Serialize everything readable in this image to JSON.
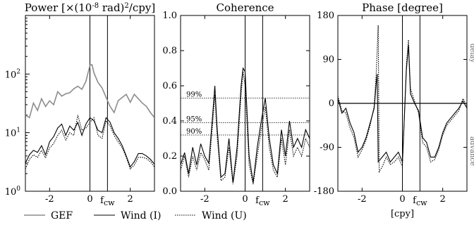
{
  "chart_data": [
    {
      "type": "line",
      "title": "Power [×(10",
      "title_exp": "-8",
      "title_tail": " rad)",
      "title_exp2": "2",
      "title_end": "/cpy]",
      "yscale": "log",
      "ylim": [
        1,
        1000
      ],
      "xlim": [
        -3.2,
        3.2
      ],
      "xticks": [
        -2,
        0,
        2
      ],
      "xtick_labels": [
        "-2",
        "0",
        "2"
      ],
      "ytick_exponents": [
        "0",
        "1",
        "2"
      ],
      "ytick_base": "10",
      "vlines": [
        0,
        0.87
      ],
      "vline_label_base": "f",
      "vline_label_sub": "cw",
      "series": [
        {
          "name": "GEF",
          "color": "#8c8c8c",
          "x": [
            -3.2,
            -3.0,
            -2.8,
            -2.6,
            -2.4,
            -2.2,
            -2.0,
            -1.8,
            -1.6,
            -1.4,
            -1.2,
            -1.0,
            -0.8,
            -0.6,
            -0.4,
            -0.2,
            0.0,
            0.1,
            0.2,
            0.4,
            0.6,
            0.8,
            1.0,
            1.2,
            1.4,
            1.6,
            1.8,
            2.0,
            2.2,
            2.4,
            2.6,
            2.8,
            3.0,
            3.2
          ],
          "y": [
            20,
            18,
            32,
            24,
            38,
            28,
            35,
            30,
            50,
            42,
            46,
            48,
            56,
            62,
            55,
            75,
            140,
            145,
            105,
            72,
            58,
            40,
            28,
            22,
            35,
            40,
            45,
            33,
            45,
            38,
            32,
            28,
            22,
            18
          ]
        },
        {
          "name": "Wind (I)",
          "color": "#000000",
          "x": [
            -3.2,
            -3.0,
            -2.8,
            -2.6,
            -2.4,
            -2.2,
            -2.0,
            -1.8,
            -1.6,
            -1.4,
            -1.2,
            -1.0,
            -0.8,
            -0.6,
            -0.4,
            -0.2,
            0.0,
            0.2,
            0.4,
            0.6,
            0.8,
            1.0,
            1.2,
            1.4,
            1.6,
            1.8,
            2.0,
            2.2,
            2.4,
            2.6,
            2.8,
            3.0,
            3.2
          ],
          "y": [
            3.0,
            4.2,
            5.0,
            4.6,
            6.0,
            4.2,
            7.0,
            8.5,
            12,
            14,
            9,
            13,
            11,
            15,
            9,
            14,
            18,
            16,
            11,
            10,
            18,
            15,
            10,
            8,
            6,
            4,
            2.6,
            3.2,
            4.4,
            4.4,
            4.0,
            3.5,
            2.9
          ]
        },
        {
          "name": "Wind (U)",
          "color": "#000000",
          "dashed": true,
          "x": [
            -3.2,
            -3.0,
            -2.8,
            -2.6,
            -2.4,
            -2.2,
            -2.0,
            -1.8,
            -1.6,
            -1.4,
            -1.2,
            -1.0,
            -0.8,
            -0.6,
            -0.4,
            -0.2,
            0.0,
            0.2,
            0.4,
            0.6,
            0.8,
            1.0,
            1.2,
            1.4,
            1.6,
            1.8,
            2.0,
            2.2,
            2.4,
            2.6,
            2.8,
            3.0,
            3.2
          ],
          "y": [
            2.4,
            3.5,
            4.2,
            3.8,
            5.0,
            3.7,
            5.5,
            6.5,
            9,
            11,
            7.5,
            10,
            9,
            20,
            11,
            12,
            15,
            18,
            9,
            8,
            16,
            13,
            9,
            7,
            5.5,
            3.8,
            2.4,
            2.8,
            3.8,
            3.8,
            3.6,
            3.2,
            2.6
          ]
        }
      ]
    },
    {
      "type": "line",
      "title": "Coherence",
      "ylim": [
        0,
        1.0
      ],
      "xlim": [
        -3.2,
        3.2
      ],
      "xticks": [
        -2,
        0,
        2
      ],
      "xtick_labels": [
        "-2",
        "0",
        "2"
      ],
      "yticks": [
        0.0,
        0.2,
        0.4,
        0.6,
        0.8,
        1.0
      ],
      "ytick_labels": [
        "0.0",
        "0.2",
        "0.4",
        "0.6",
        "0.8",
        "1.0"
      ],
      "vlines": [
        0,
        0.87
      ],
      "vline_label_base": "f",
      "vline_label_sub": "cw",
      "significance_levels": [
        {
          "label": "99%",
          "value": 0.53
        },
        {
          "label": "95%",
          "value": 0.39
        },
        {
          "label": "90%",
          "value": 0.32
        }
      ],
      "series": [
        {
          "name": "Wind (I)",
          "color": "#000000",
          "x": [
            -3.2,
            -3.0,
            -2.8,
            -2.6,
            -2.4,
            -2.2,
            -2.0,
            -1.8,
            -1.6,
            -1.5,
            -1.4,
            -1.2,
            -1.0,
            -0.8,
            -0.6,
            -0.4,
            -0.2,
            -0.1,
            0.0,
            0.2,
            0.4,
            0.6,
            0.8,
            1.0,
            1.2,
            1.4,
            1.6,
            1.8,
            2.0,
            2.2,
            2.4,
            2.6,
            2.8,
            3.0,
            3.2
          ],
          "y": [
            0.15,
            0.22,
            0.1,
            0.25,
            0.15,
            0.27,
            0.2,
            0.16,
            0.45,
            0.6,
            0.38,
            0.08,
            0.1,
            0.3,
            0.05,
            0.25,
            0.6,
            0.7,
            0.68,
            0.2,
            0.05,
            0.25,
            0.4,
            0.53,
            0.3,
            0.15,
            0.1,
            0.35,
            0.2,
            0.4,
            0.25,
            0.3,
            0.25,
            0.35,
            0.3
          ]
        },
        {
          "name": "Wind (U)",
          "color": "#000000",
          "dashed": true,
          "x": [
            -3.2,
            -3.0,
            -2.8,
            -2.6,
            -2.4,
            -2.2,
            -2.0,
            -1.8,
            -1.6,
            -1.5,
            -1.4,
            -1.2,
            -1.0,
            -0.8,
            -0.6,
            -0.4,
            -0.2,
            -0.1,
            0.0,
            0.2,
            0.4,
            0.6,
            0.8,
            1.0,
            1.2,
            1.4,
            1.6,
            1.8,
            2.0,
            2.2,
            2.4,
            2.6,
            2.8,
            3.0,
            3.2
          ],
          "y": [
            0.12,
            0.2,
            0.08,
            0.2,
            0.12,
            0.22,
            0.18,
            0.12,
            0.4,
            0.55,
            0.33,
            0.06,
            0.08,
            0.25,
            0.04,
            0.2,
            0.55,
            0.68,
            0.6,
            0.15,
            0.04,
            0.2,
            0.35,
            0.48,
            0.25,
            0.12,
            0.08,
            0.3,
            0.15,
            0.35,
            0.2,
            0.25,
            0.2,
            0.3,
            0.25
          ]
        }
      ]
    },
    {
      "type": "line",
      "title": "Phase [degree]",
      "ylim": [
        -180,
        180
      ],
      "xlim": [
        -3.2,
        3.2
      ],
      "xticks": [
        -2,
        0,
        2
      ],
      "xtick_labels": [
        "-2",
        "0",
        "2"
      ],
      "yticks": [
        -180,
        -90,
        0,
        90,
        180
      ],
      "ytick_labels": [
        "-180",
        "-90",
        "0",
        "90",
        "180"
      ],
      "xlabel": "[cpy]",
      "vlines": [
        0,
        0.87
      ],
      "vline_label_base": "f",
      "vline_label_sub": "cw",
      "side_labels": [
        "delay",
        "advance"
      ],
      "series": [
        {
          "name": "Wind (I)",
          "color": "#000000",
          "x": [
            -3.2,
            -3.0,
            -2.8,
            -2.6,
            -2.4,
            -2.2,
            -2.0,
            -1.8,
            -1.6,
            -1.4,
            -1.3,
            -1.25,
            -1.2,
            -1.0,
            -0.8,
            -0.6,
            -0.4,
            -0.2,
            0.0,
            0.2,
            0.3,
            0.4,
            0.6,
            0.8,
            1.0,
            1.2,
            1.4,
            1.6,
            1.8,
            2.0,
            2.2,
            2.4,
            2.6,
            2.8,
            3.0,
            3.2
          ],
          "y": [
            10,
            -20,
            -10,
            -40,
            -60,
            -100,
            -90,
            -70,
            -40,
            -10,
            40,
            60,
            -120,
            -110,
            -100,
            -120,
            -110,
            -100,
            -120,
            70,
            120,
            20,
            0,
            -15,
            -70,
            -80,
            -110,
            -110,
            -90,
            -60,
            -40,
            -30,
            -20,
            -10,
            5,
            -10
          ]
        },
        {
          "name": "Wind (U)",
          "color": "#000000",
          "dashed": true,
          "x": [
            -3.2,
            -3.0,
            -2.8,
            -2.6,
            -2.4,
            -2.2,
            -2.0,
            -1.8,
            -1.6,
            -1.4,
            -1.3,
            -1.2,
            -1.15,
            -1.0,
            -0.8,
            -0.6,
            -0.4,
            -0.2,
            0.0,
            0.2,
            0.3,
            0.4,
            0.6,
            0.8,
            1.0,
            1.2,
            1.4,
            1.6,
            1.8,
            2.0,
            2.2,
            2.4,
            2.6,
            2.8,
            3.0,
            3.2
          ],
          "y": [
            15,
            -15,
            -20,
            -50,
            -70,
            -110,
            -95,
            -75,
            -45,
            -5,
            60,
            160,
            -140,
            -130,
            -110,
            -125,
            -120,
            -110,
            -130,
            80,
            130,
            30,
            5,
            -20,
            -80,
            -90,
            -120,
            -115,
            -95,
            -65,
            -45,
            -35,
            -25,
            -15,
            10,
            -5
          ]
        }
      ]
    }
  ],
  "legend": {
    "items": [
      {
        "label": "GEF",
        "color": "#8c8c8c",
        "dashed": false
      },
      {
        "label": "Wind (I)",
        "color": "#000000",
        "dashed": false
      },
      {
        "label": "Wind (U)",
        "color": "#000000",
        "dashed": true
      }
    ]
  }
}
